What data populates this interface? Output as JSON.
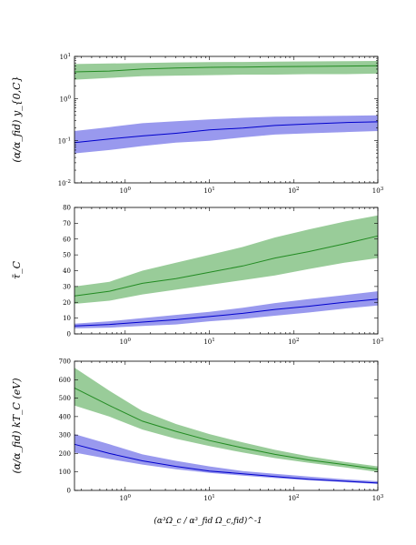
{
  "chart_data": [
    {
      "type": "area",
      "ylabel": "(α/α_fid) y_{0,C}",
      "xlabel": "",
      "xscale": "log",
      "yscale": "log",
      "xlim": [
        0.25,
        1000
      ],
      "ylim": [
        0.01,
        10
      ],
      "xticks": [
        "10^0",
        "10^1",
        "10^2",
        "10^3"
      ],
      "yticks": [
        "10^-2",
        "10^-1",
        "10^0",
        "10^1"
      ],
      "series": [
        {
          "color": "#228b22",
          "fill": "#99cc99",
          "x": [
            0.25,
            0.65,
            1.6,
            4.0,
            10,
            25,
            60,
            150,
            400,
            1000
          ],
          "y": [
            4.3,
            4.5,
            5.0,
            5.3,
            5.5,
            5.6,
            5.7,
            5.8,
            5.9,
            6.0
          ],
          "y_low": [
            2.8,
            3.1,
            3.4,
            3.5,
            3.6,
            3.7,
            3.7,
            3.8,
            3.8,
            3.9
          ],
          "y_high": [
            6.6,
            6.8,
            7.0,
            7.2,
            7.3,
            7.4,
            7.5,
            7.6,
            7.7,
            7.8
          ]
        },
        {
          "color": "#0000cc",
          "fill": "#9999ee",
          "x": [
            0.25,
            0.65,
            1.6,
            4.0,
            10,
            25,
            60,
            150,
            400,
            1000
          ],
          "y": [
            0.09,
            0.11,
            0.13,
            0.15,
            0.18,
            0.2,
            0.23,
            0.25,
            0.27,
            0.28
          ],
          "y_low": [
            0.05,
            0.06,
            0.075,
            0.09,
            0.1,
            0.12,
            0.14,
            0.15,
            0.16,
            0.17
          ],
          "y_high": [
            0.17,
            0.21,
            0.26,
            0.29,
            0.32,
            0.35,
            0.37,
            0.38,
            0.39,
            0.4
          ]
        }
      ]
    },
    {
      "type": "area",
      "ylabel": "τ̄_C",
      "xlabel": "",
      "xscale": "log",
      "yscale": "linear",
      "xlim": [
        0.25,
        1000
      ],
      "ylim": [
        0,
        80
      ],
      "xticks": [
        "10^0",
        "10^1",
        "10^2",
        "10^3"
      ],
      "yticks": [
        "0",
        "10",
        "20",
        "30",
        "40",
        "50",
        "60",
        "70",
        "80"
      ],
      "series": [
        {
          "color": "#228b22",
          "fill": "#99cc99",
          "x": [
            0.25,
            0.65,
            1.6,
            4.0,
            10,
            25,
            60,
            150,
            400,
            1000
          ],
          "y": [
            24,
            27,
            32,
            35,
            39,
            43,
            48,
            52,
            57,
            62
          ],
          "y_low": [
            19,
            21,
            25,
            28,
            31,
            34,
            37,
            41,
            45,
            48
          ],
          "y_high": [
            30,
            33,
            40,
            45,
            50,
            55,
            61,
            66,
            71,
            75
          ]
        },
        {
          "color": "#0000cc",
          "fill": "#9999ee",
          "x": [
            0.25,
            0.65,
            1.6,
            4.0,
            10,
            25,
            60,
            150,
            400,
            1000
          ],
          "y": [
            5,
            6,
            7.5,
            9,
            11,
            13,
            15.5,
            17.5,
            20,
            22
          ],
          "y_low": [
            3.5,
            4,
            5,
            6,
            8,
            9.5,
            11.5,
            13.5,
            16,
            18
          ],
          "y_high": [
            6.5,
            8,
            10,
            12,
            14,
            16.5,
            19.5,
            22,
            24.5,
            27
          ]
        }
      ]
    },
    {
      "type": "area",
      "ylabel": "(α/α_fid) kT_C (eV)",
      "xlabel": "(α³Ω_c / α³_fid Ω_c,fid)^-1",
      "xscale": "log",
      "yscale": "linear",
      "xlim": [
        0.25,
        1000
      ],
      "ylim": [
        0,
        700
      ],
      "xticks": [
        "10^0",
        "10^1",
        "10^2",
        "10^3"
      ],
      "yticks": [
        "0",
        "100",
        "200",
        "300",
        "400",
        "500",
        "600",
        "700"
      ],
      "series": [
        {
          "color": "#228b22",
          "fill": "#99cc99",
          "x": [
            0.25,
            0.65,
            1.6,
            4.0,
            10,
            25,
            60,
            150,
            400,
            1000
          ],
          "y": [
            555,
            460,
            375,
            320,
            270,
            230,
            195,
            165,
            140,
            115
          ],
          "y_low": [
            460,
            400,
            330,
            280,
            240,
            205,
            175,
            150,
            125,
            100
          ],
          "y_high": [
            665,
            540,
            430,
            360,
            305,
            260,
            220,
            185,
            155,
            130
          ]
        },
        {
          "color": "#0000cc",
          "fill": "#9999ee",
          "x": [
            0.25,
            0.65,
            1.6,
            4.0,
            10,
            25,
            60,
            150,
            400,
            1000
          ],
          "y": [
            250,
            200,
            160,
            130,
            105,
            90,
            75,
            60,
            50,
            40
          ],
          "y_low": [
            205,
            170,
            140,
            115,
            95,
            80,
            67,
            55,
            45,
            35
          ],
          "y_high": [
            305,
            250,
            195,
            160,
            130,
            105,
            90,
            75,
            60,
            50
          ]
        }
      ]
    }
  ]
}
